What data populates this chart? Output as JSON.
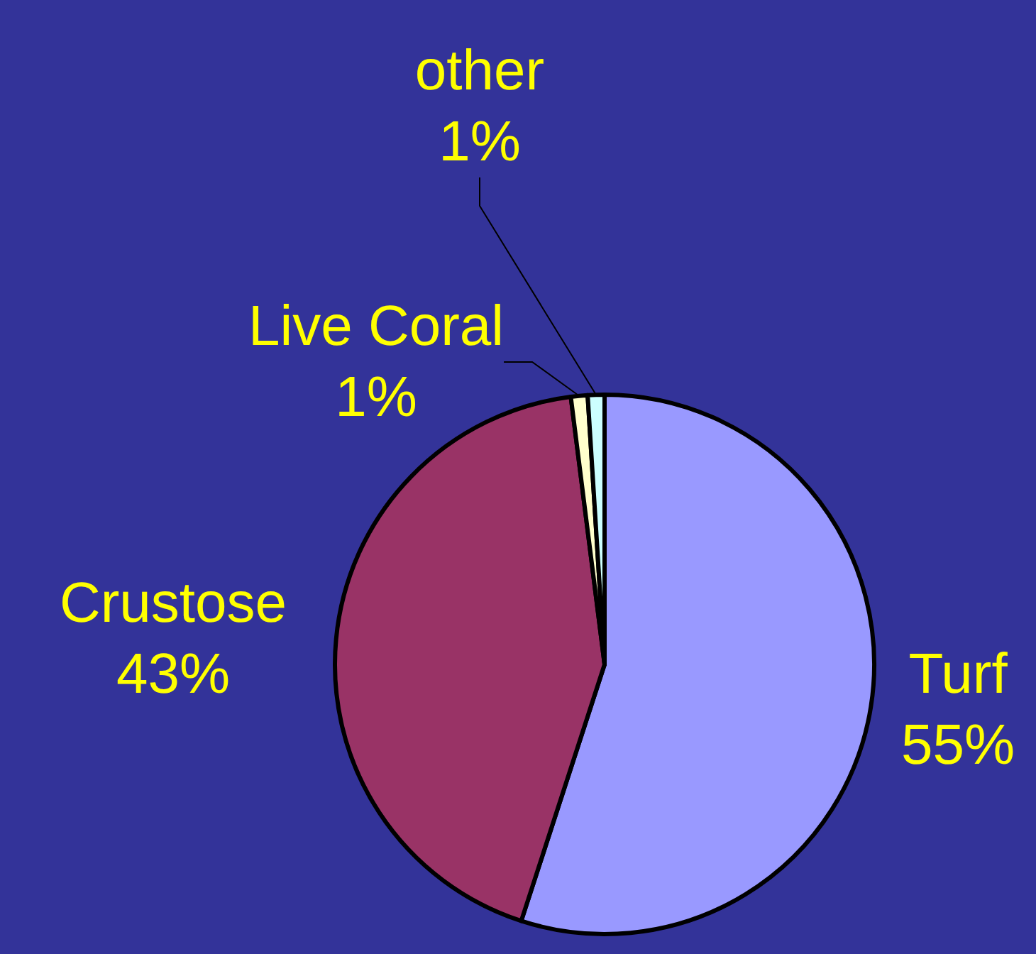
{
  "chart_data": {
    "type": "pie",
    "categories": [
      "Turf",
      "Crustose",
      "Live Coral",
      "other"
    ],
    "values": [
      55,
      43,
      1,
      1
    ],
    "colors": [
      "#9999ff",
      "#993366",
      "#ffffcc",
      "#ccffff"
    ],
    "value_labels": [
      "55%",
      "43%",
      "1%",
      "1%"
    ],
    "legend": false
  }
}
